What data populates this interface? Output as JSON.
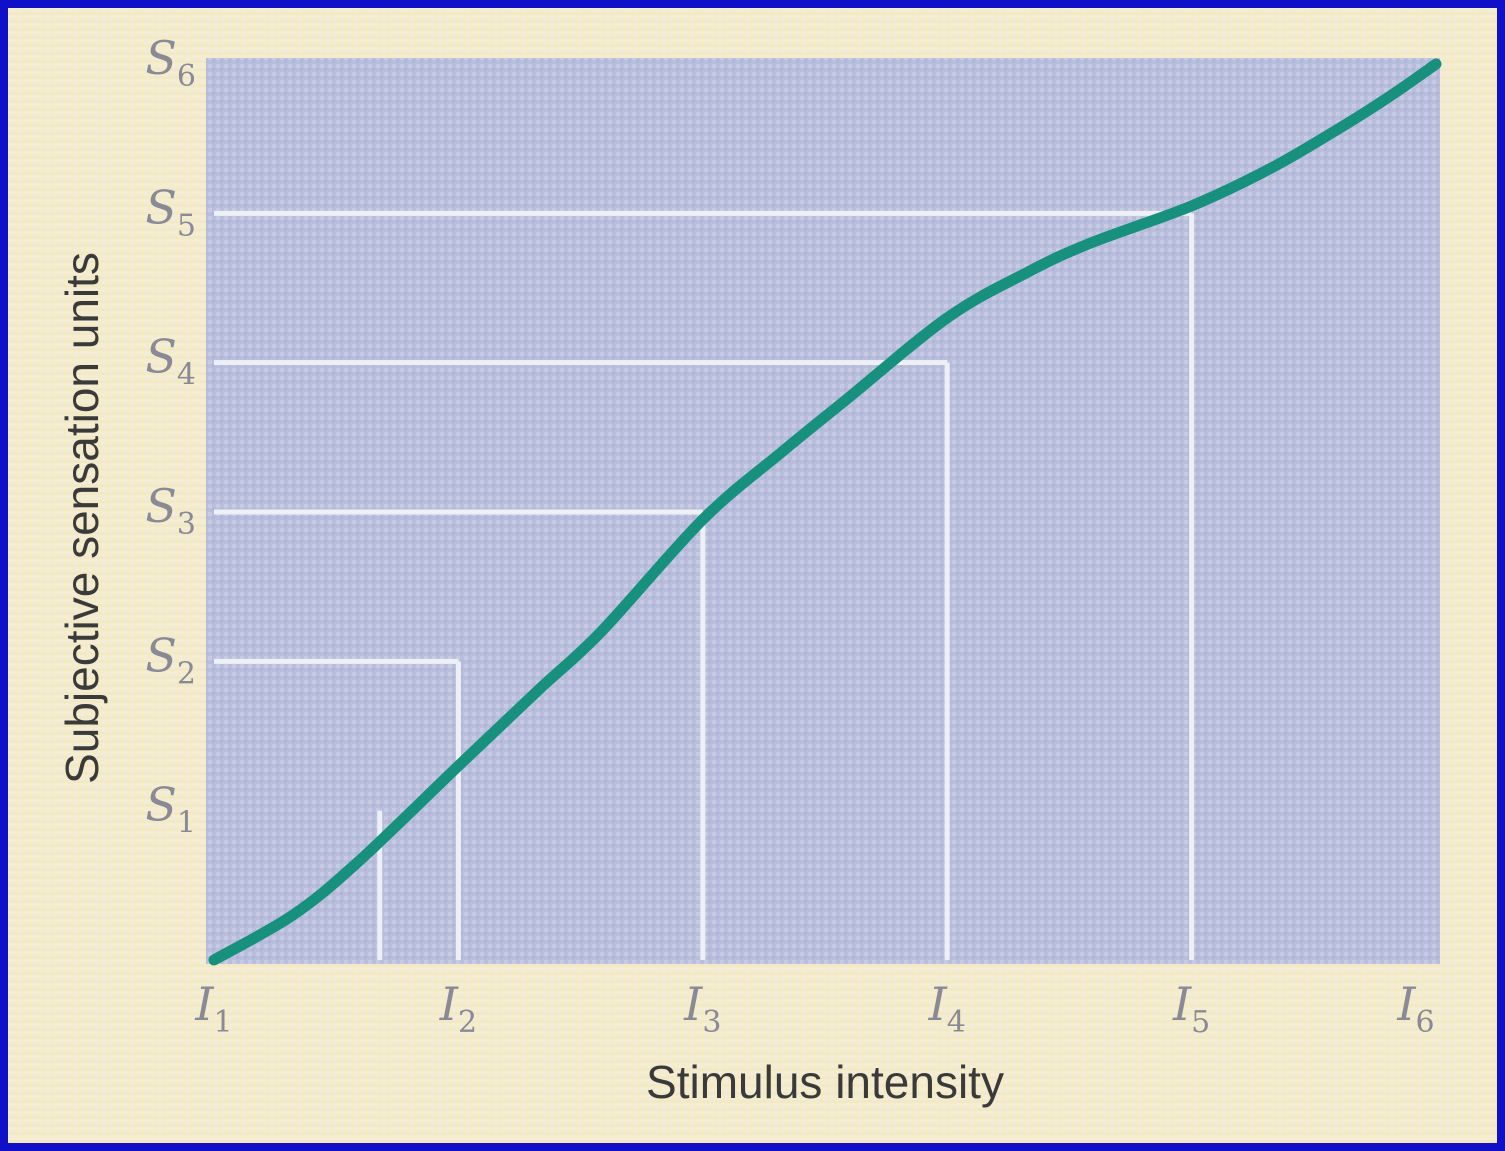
{
  "chart_data": {
    "type": "line",
    "title": "",
    "xlabel": "Stimulus intensity",
    "ylabel": "Subjective sensation units",
    "x_ticks": [
      {
        "label": "I",
        "sub": "1",
        "value": 1
      },
      {
        "label": "I",
        "sub": "2",
        "value": 2
      },
      {
        "label": "I",
        "sub": "3",
        "value": 4
      },
      {
        "label": "I",
        "sub": "4",
        "value": 8
      },
      {
        "label": "I",
        "sub": "5",
        "value": 16
      },
      {
        "label": "I",
        "sub": "6",
        "value": 32
      }
    ],
    "y_ticks": [
      {
        "label": "S",
        "sub": "1",
        "value": 1
      },
      {
        "label": "S",
        "sub": "2",
        "value": 2
      },
      {
        "label": "S",
        "sub": "3",
        "value": 3
      },
      {
        "label": "S",
        "sub": "4",
        "value": 4
      },
      {
        "label": "S",
        "sub": "5",
        "value": 5
      },
      {
        "label": "S",
        "sub": "6",
        "value": 6
      }
    ],
    "xlim": [
      1,
      32
    ],
    "ylim": [
      0,
      6
    ],
    "grid": false,
    "series": [
      {
        "x": [
          1,
          1.25,
          1.5,
          2,
          2.5,
          3,
          4,
          5,
          6,
          8,
          10,
          12,
          16,
          20,
          24,
          28,
          32
        ],
        "y": [
          0,
          0.3,
          0.65,
          1.3,
          1.8,
          2.2,
          2.95,
          3.4,
          3.75,
          4.3,
          4.6,
          4.8,
          5.05,
          5.3,
          5.55,
          5.78,
          6
        ]
      }
    ],
    "reference_lines": [
      {
        "x": 1.6
      },
      {
        "x": 2,
        "y": 2
      },
      {
        "x": 4,
        "y": 3
      },
      {
        "x": 8,
        "y": 4
      },
      {
        "x": 16,
        "y": 5
      }
    ],
    "colors": {
      "curve": "#17917e",
      "plot_bg": "#b9c0dc",
      "guide": "#eef0f6"
    }
  }
}
